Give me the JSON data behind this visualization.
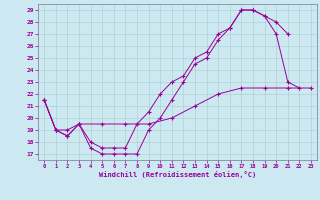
{
  "xlabel": "Windchill (Refroidissement éolien,°C)",
  "bg_color": "#cce8f0",
  "line_color": "#990099",
  "grid_color": "#aacccc",
  "xlim": [
    -0.5,
    23.5
  ],
  "ylim": [
    16.5,
    29.5
  ],
  "xticks": [
    0,
    1,
    2,
    3,
    4,
    5,
    6,
    7,
    8,
    9,
    10,
    11,
    12,
    13,
    14,
    15,
    16,
    17,
    18,
    19,
    20,
    21,
    22,
    23
  ],
  "yticks": [
    17,
    18,
    19,
    20,
    21,
    22,
    23,
    24,
    25,
    26,
    27,
    28,
    29
  ],
  "line1_x": [
    0,
    1,
    2,
    3,
    4,
    5,
    6,
    7,
    8,
    9,
    10,
    11,
    12,
    13,
    14,
    15,
    16,
    17,
    18,
    19,
    20,
    21,
    22
  ],
  "line1_y": [
    21.5,
    19.0,
    18.5,
    19.5,
    17.5,
    17.0,
    17.0,
    17.0,
    17.0,
    19.0,
    20.0,
    21.5,
    23.0,
    24.5,
    25.0,
    26.5,
    27.5,
    29.0,
    29.0,
    28.5,
    27.0,
    23.0,
    22.5
  ],
  "line2_x": [
    0,
    1,
    2,
    3,
    4,
    5,
    6,
    7,
    8,
    9,
    10,
    11,
    12,
    13,
    14,
    15,
    16,
    17,
    18,
    19,
    20,
    21
  ],
  "line2_y": [
    21.5,
    19.0,
    18.5,
    19.5,
    18.0,
    17.5,
    17.5,
    17.5,
    19.5,
    20.5,
    22.0,
    23.0,
    23.5,
    25.0,
    25.5,
    27.0,
    27.5,
    29.0,
    29.0,
    28.5,
    28.0,
    27.0
  ],
  "line3_x": [
    0,
    1,
    2,
    3,
    5,
    7,
    9,
    11,
    13,
    15,
    17,
    19,
    21,
    23
  ],
  "line3_y": [
    21.5,
    19.0,
    19.0,
    19.5,
    19.5,
    19.5,
    19.5,
    20.0,
    21.0,
    22.0,
    22.5,
    22.5,
    22.5,
    22.5
  ]
}
